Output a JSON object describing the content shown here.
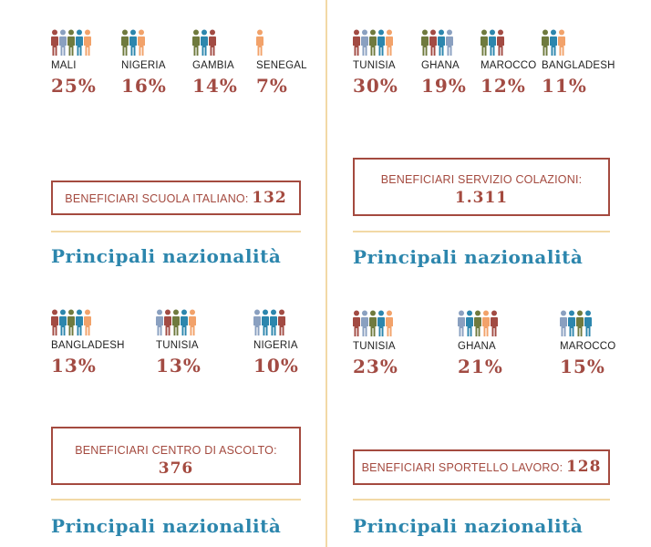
{
  "heading": "Principali nazionalità",
  "sections": {
    "left_1": {
      "items": [
        {
          "country": "MALI",
          "pct": "25%",
          "colors": [
            "#a24b43",
            "#8aa0c0",
            "#6f7a3e",
            "#2c86ad",
            "#f2a26a"
          ]
        },
        {
          "country": "NIGERIA",
          "pct": "16%",
          "colors": [
            "#6f7a3e",
            "#2c86ad",
            "#f2a26a"
          ]
        },
        {
          "country": "GAMBIA",
          "pct": "14%",
          "colors": [
            "#6f7a3e",
            "#2c86ad",
            "#a24b43"
          ]
        },
        {
          "country": "SENEGAL",
          "pct": "7%",
          "colors": [
            "#f2a26a"
          ]
        }
      ]
    },
    "right_1": {
      "items": [
        {
          "country": "TUNISIA",
          "pct": "30%",
          "colors": [
            "#a24b43",
            "#8aa0c0",
            "#6f7a3e",
            "#2c86ad",
            "#f2a26a"
          ]
        },
        {
          "country": "GHANA",
          "pct": "19%",
          "colors": [
            "#6f7a3e",
            "#a24b43",
            "#2c86ad",
            "#8aa0c0"
          ]
        },
        {
          "country": "MAROCCO",
          "pct": "12%",
          "colors": [
            "#6f7a3e",
            "#2c86ad",
            "#a24b43"
          ]
        },
        {
          "country": "BANGLADESH",
          "pct": "11%",
          "colors": [
            "#6f7a3e",
            "#2c86ad",
            "#f2a26a"
          ]
        }
      ]
    },
    "left_2": {
      "items": [
        {
          "country": "BANGLADESH",
          "pct": "13%",
          "colors": [
            "#a24b43",
            "#2c86ad",
            "#6f7a3e",
            "#2c86ad",
            "#f2a26a"
          ]
        },
        {
          "country": "TUNISIA",
          "pct": "13%",
          "colors": [
            "#8aa0c0",
            "#a24b43",
            "#6f7a3e",
            "#2c86ad",
            "#f2a26a"
          ]
        },
        {
          "country": "NIGERIA",
          "pct": "10%",
          "colors": [
            "#8aa0c0",
            "#2c86ad",
            "#2c86ad",
            "#a24b43"
          ]
        }
      ]
    },
    "right_2": {
      "items": [
        {
          "country": "TUNISIA",
          "pct": "23%",
          "colors": [
            "#a24b43",
            "#8aa0c0",
            "#6f7a3e",
            "#2c86ad",
            "#f2a26a"
          ]
        },
        {
          "country": "GHANA",
          "pct": "21%",
          "colors": [
            "#8aa0c0",
            "#2c86ad",
            "#6f7a3e",
            "#f2a26a",
            "#a24b43"
          ]
        },
        {
          "country": "MAROCCO",
          "pct": "15%",
          "colors": [
            "#8aa0c0",
            "#2c86ad",
            "#6f7a3e",
            "#2c86ad"
          ]
        }
      ]
    }
  },
  "boxes": {
    "scuola": {
      "label": "BENEFICIARI SCUOLA ITALIANO:",
      "value": "132"
    },
    "colazioni": {
      "label": "BENEFICIARI SERVIZIO COLAZIONI:",
      "value": "1.311"
    },
    "ascolto": {
      "label": "BENEFICIARI CENTRO DI ASCOLTO:",
      "value": "376"
    },
    "lavoro": {
      "label": "BENEFICIARI SPORTELLO LAVORO:",
      "value": "128"
    }
  }
}
